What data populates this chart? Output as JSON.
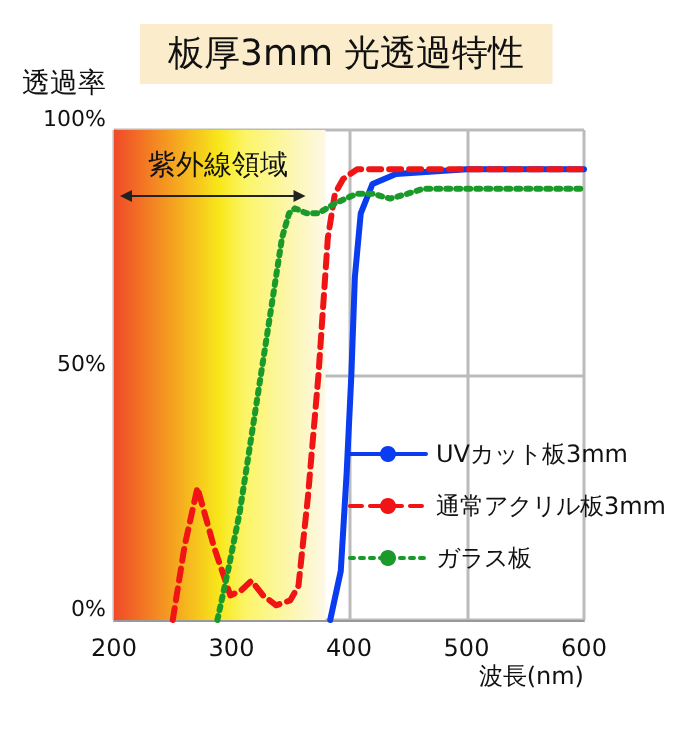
{
  "chart_data": {
    "type": "line",
    "title": "板厚3mm 光透過特性",
    "ylabel": "透過率",
    "xlabel": "波長(nm)",
    "xlim": [
      200,
      600
    ],
    "xticks": [
      200,
      300,
      400,
      500,
      600
    ],
    "ylim": [
      0,
      100
    ],
    "yticks": [
      {
        "value": 0,
        "label": "0%"
      },
      {
        "value": 50,
        "label": "50%"
      },
      {
        "value": 100,
        "label": "100%"
      }
    ],
    "grid": true,
    "legend": "bottom right",
    "marker": "none",
    "bands": [
      {
        "axis": "x",
        "from": 200,
        "to": 380,
        "label": "紫外線領域"
      }
    ],
    "series": [
      {
        "name": "UVカット板3mm",
        "color": "#0a3cf0",
        "line_style": "solid",
        "x": [
          384,
          393,
          398,
          402,
          405,
          410,
          420,
          440,
          500,
          600
        ],
        "values": [
          0,
          10,
          30,
          50,
          70,
          83,
          89,
          91,
          92,
          92
        ]
      },
      {
        "name": "通常アクリル板3mm",
        "color": "#f01414",
        "line_style": "dashed",
        "x": [
          250,
          260,
          271,
          285,
          299,
          308,
          317,
          327,
          338,
          350,
          357,
          365,
          374,
          382,
          388,
          395,
          407,
          450,
          600
        ],
        "values": [
          0,
          15,
          27,
          15,
          5,
          6,
          8,
          5,
          3,
          4,
          7,
          25,
          50,
          78,
          87,
          90,
          92,
          92,
          92
        ]
      },
      {
        "name": "ガラス板",
        "color": "#1a9a2a",
        "line_style": "dotted",
        "x": [
          288,
          297,
          307,
          316,
          325,
          334,
          343,
          349,
          354,
          364,
          374,
          381,
          388,
          397,
          407,
          420,
          435,
          450,
          463,
          500,
          600
        ],
        "values": [
          0,
          10,
          22,
          36,
          50,
          64,
          78,
          83,
          84,
          83,
          83,
          84,
          85,
          86,
          87,
          87,
          86,
          87,
          88,
          88,
          88
        ]
      }
    ]
  }
}
